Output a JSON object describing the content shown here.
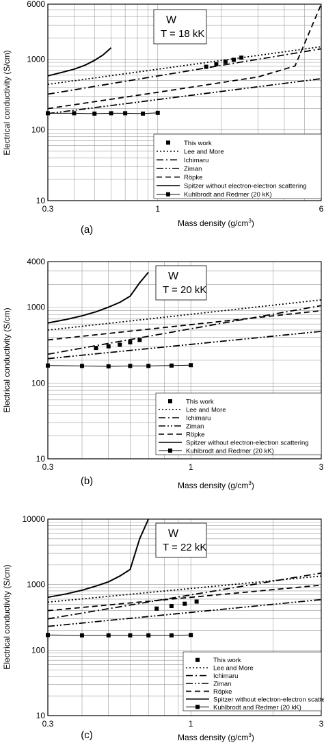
{
  "chart_data": [
    {
      "type": "line",
      "panel_label": "(a)",
      "annotation": {
        "element": "W",
        "temperature": "T = 18 kK"
      },
      "xlabel": "Mass density (g/cm³)",
      "ylabel": "Electrical conductivity (S/cm)",
      "xscale": "log",
      "yscale": "log",
      "xlim": [
        0.3,
        6
      ],
      "ylim": [
        10,
        6000
      ],
      "x_ticks": [
        {
          "v": 0.3,
          "t": "0.3"
        },
        {
          "v": 1,
          "t": "1"
        },
        {
          "v": 6,
          "t": "6"
        }
      ],
      "y_ticks": [
        {
          "v": 10,
          "t": "10"
        },
        {
          "v": 100,
          "t": "100"
        },
        {
          "v": 1000,
          "t": "1000"
        },
        {
          "v": 6000,
          "t": "6000"
        }
      ],
      "grid": true,
      "legend_position": "bottom-right",
      "series": [
        {
          "name": "This work",
          "style": "markers",
          "x": [
            1.7,
            1.9,
            2.1,
            2.3,
            2.5
          ],
          "y": [
            780,
            850,
            920,
            980,
            1050
          ]
        },
        {
          "name": "Lee and More",
          "style": "dotted",
          "x": [
            0.3,
            6
          ],
          "y": [
            440,
            1500
          ]
        },
        {
          "name": "Ichimaru",
          "style": "dashdot",
          "x": [
            0.3,
            6
          ],
          "y": [
            320,
            1400
          ]
        },
        {
          "name": "Ziman",
          "style": "dashdotdot",
          "x": [
            0.3,
            6
          ],
          "y": [
            170,
            530
          ]
        },
        {
          "name": "Röpke",
          "style": "dashed",
          "x": [
            0.3,
            1,
            3,
            4.5,
            6
          ],
          "y": [
            200,
            340,
            560,
            800,
            6000
          ]
        },
        {
          "name": "Spitzer without electron-electron scattering",
          "style": "solid",
          "x": [
            0.3,
            0.35,
            0.4,
            0.45,
            0.5,
            0.55,
            0.6
          ],
          "y": [
            580,
            650,
            720,
            820,
            960,
            1150,
            1450
          ]
        },
        {
          "name": "Kuhlbrodt and Redmer (20 kK)",
          "style": "solid-square",
          "x": [
            0.3,
            0.4,
            0.5,
            0.6,
            0.7,
            0.85,
            1.0
          ],
          "y": [
            172,
            172,
            170,
            172,
            172,
            170,
            174
          ]
        }
      ]
    },
    {
      "type": "line",
      "panel_label": "(b)",
      "annotation": {
        "element": "W",
        "temperature": "T = 20 kK"
      },
      "xlabel": "Mass density (g/cm³)",
      "ylabel": "Electrical conductivity (S/cm)",
      "xscale": "log",
      "yscale": "log",
      "xlim": [
        0.3,
        3
      ],
      "ylim": [
        10,
        4000
      ],
      "x_ticks": [
        {
          "v": 0.3,
          "t": "0.3"
        },
        {
          "v": 1,
          "t": "1"
        },
        {
          "v": 3,
          "t": "3"
        }
      ],
      "y_ticks": [
        {
          "v": 10,
          "t": "10"
        },
        {
          "v": 100,
          "t": "100"
        },
        {
          "v": 1000,
          "t": "1000"
        },
        {
          "v": 4000,
          "t": "4000"
        }
      ],
      "grid": true,
      "legend_position": "bottom-right",
      "series": [
        {
          "name": "This work",
          "style": "markers",
          "x": [
            0.45,
            0.5,
            0.55,
            0.6,
            0.65
          ],
          "y": [
            290,
            305,
            320,
            345,
            370
          ]
        },
        {
          "name": "Lee and More",
          "style": "dotted",
          "x": [
            0.3,
            3
          ],
          "y": [
            500,
            1250
          ]
        },
        {
          "name": "Ichimaru",
          "style": "dashdot",
          "x": [
            0.3,
            3
          ],
          "y": [
            240,
            1050
          ]
        },
        {
          "name": "Ziman",
          "style": "dashdotdot",
          "x": [
            0.3,
            3
          ],
          "y": [
            210,
            480
          ]
        },
        {
          "name": "Röpke",
          "style": "dashed",
          "x": [
            0.3,
            3
          ],
          "y": [
            370,
            900
          ]
        },
        {
          "name": "Spitzer without electron-electron scattering",
          "style": "solid",
          "x": [
            0.3,
            0.35,
            0.4,
            0.45,
            0.5,
            0.55,
            0.6,
            0.65,
            0.7
          ],
          "y": [
            620,
            690,
            770,
            870,
            1000,
            1160,
            1400,
            2100,
            2900
          ]
        },
        {
          "name": "Kuhlbrodt and Redmer (20 kK)",
          "style": "solid-square",
          "x": [
            0.3,
            0.4,
            0.5,
            0.6,
            0.7,
            0.85,
            1.0
          ],
          "y": [
            170,
            168,
            166,
            168,
            168,
            170,
            172
          ]
        }
      ]
    },
    {
      "type": "line",
      "panel_label": "(c)",
      "annotation": {
        "element": "W",
        "temperature": "T = 22 kK"
      },
      "xlabel": "Mass density (g/cm³)",
      "ylabel": "Electrical conductivity (S/cm)",
      "xscale": "log",
      "yscale": "log",
      "xlim": [
        0.3,
        3
      ],
      "ylim": [
        10,
        10000
      ],
      "x_ticks": [
        {
          "v": 0.3,
          "t": "0.3"
        },
        {
          "v": 1,
          "t": "1"
        },
        {
          "v": 3,
          "t": "3"
        }
      ],
      "y_ticks": [
        {
          "v": 10,
          "t": "10"
        },
        {
          "v": 100,
          "t": "100"
        },
        {
          "v": 1000,
          "t": "1000"
        },
        {
          "v": 10000,
          "t": "10000"
        }
      ],
      "grid": true,
      "legend_position": "bottom-right",
      "series": [
        {
          "name": "This work",
          "style": "markers",
          "x": [
            0.75,
            0.85,
            0.95,
            1.05
          ],
          "y": [
            430,
            470,
            510,
            550
          ]
        },
        {
          "name": "Lee and More",
          "style": "dotted",
          "x": [
            0.3,
            3
          ],
          "y": [
            540,
            1350
          ]
        },
        {
          "name": "Ichimaru",
          "style": "dashdot",
          "x": [
            0.3,
            3
          ],
          "y": [
            300,
            1500
          ]
        },
        {
          "name": "Ziman",
          "style": "dashdotdot",
          "x": [
            0.3,
            3
          ],
          "y": [
            230,
            590
          ]
        },
        {
          "name": "Röpke",
          "style": "dashed",
          "x": [
            0.3,
            3
          ],
          "y": [
            400,
            980
          ]
        },
        {
          "name": "Spitzer without electron-electron scattering",
          "style": "solid",
          "x": [
            0.3,
            0.35,
            0.4,
            0.45,
            0.5,
            0.55,
            0.6,
            0.65,
            0.7
          ],
          "y": [
            640,
            720,
            820,
            950,
            1100,
            1350,
            1700,
            5000,
            10000
          ]
        },
        {
          "name": "Kuhlbrodt and Redmer (20 kK)",
          "style": "solid-square",
          "x": [
            0.3,
            0.4,
            0.5,
            0.6,
            0.7,
            0.85,
            1.0
          ],
          "y": [
            170,
            168,
            168,
            168,
            168,
            168,
            170
          ]
        }
      ]
    }
  ]
}
